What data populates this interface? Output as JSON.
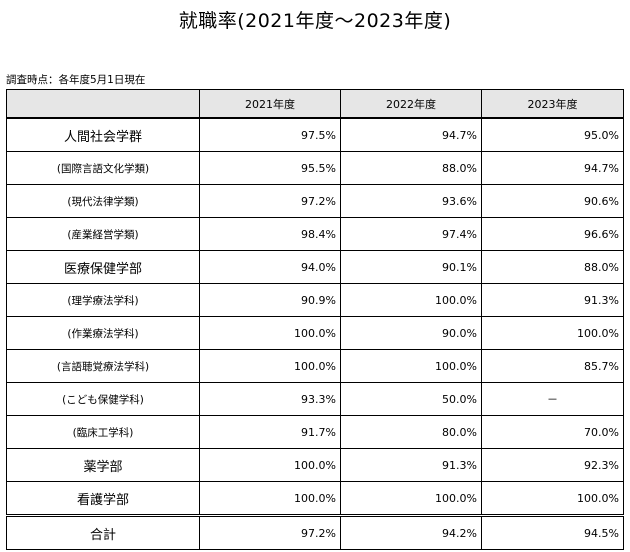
{
  "title": "就職率(2021年度～2023年度)",
  "note": "調査時点：各年度5月1日現在",
  "table": {
    "headers": [
      "",
      "2021年度",
      "2022年度",
      "2023年度"
    ],
    "rows": [
      {
        "name": "人間社会学群",
        "level": "major",
        "values": [
          "97.5%",
          "94.7%",
          "95.0%"
        ]
      },
      {
        "name": "(国際言語文化学類)",
        "level": "minor",
        "values": [
          "95.5%",
          "88.0%",
          "94.7%"
        ]
      },
      {
        "name": "(現代法律学類)",
        "level": "minor",
        "values": [
          "97.2%",
          "93.6%",
          "90.6%"
        ]
      },
      {
        "name": "(産業経営学類)",
        "level": "minor",
        "values": [
          "98.4%",
          "97.4%",
          "96.6%"
        ]
      },
      {
        "name": "医療保健学部",
        "level": "major",
        "values": [
          "94.0%",
          "90.1%",
          "88.0%"
        ]
      },
      {
        "name": "(理学療法学科)",
        "level": "minor",
        "values": [
          "90.9%",
          "100.0%",
          "91.3%"
        ]
      },
      {
        "name": "(作業療法学科)",
        "level": "minor",
        "values": [
          "100.0%",
          "90.0%",
          "100.0%"
        ]
      },
      {
        "name": "(言語聴覚療法学科)",
        "level": "minor",
        "values": [
          "100.0%",
          "100.0%",
          "85.7%"
        ]
      },
      {
        "name": "(こども保健学科)",
        "level": "minor",
        "values": [
          "93.3%",
          "50.0%",
          "－"
        ]
      },
      {
        "name": "(臨床工学科)",
        "level": "minor",
        "values": [
          "91.7%",
          "80.0%",
          "70.0%"
        ]
      },
      {
        "name": "薬学部",
        "level": "major",
        "values": [
          "100.0%",
          "91.3%",
          "92.3%"
        ]
      },
      {
        "name": "看護学部",
        "level": "major",
        "values": [
          "100.0%",
          "100.0%",
          "100.0%"
        ]
      }
    ],
    "total": {
      "name": "合計",
      "values": [
        "97.2%",
        "94.2%",
        "94.5%"
      ]
    }
  }
}
